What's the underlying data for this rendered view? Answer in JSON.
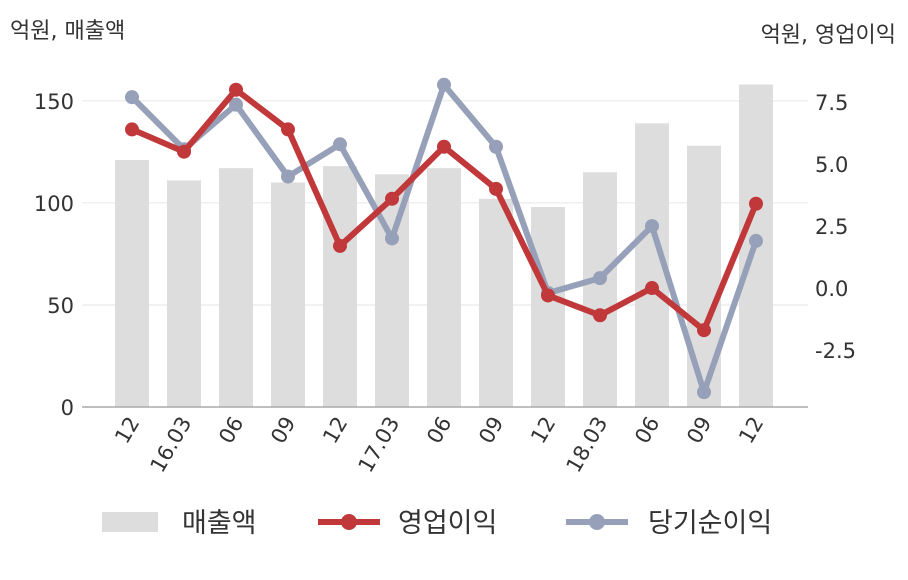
{
  "chart_data": {
    "type": "bar+line",
    "left_axis_unit": "억원, 매출액",
    "right_axis_unit": "억원, 영업이익",
    "categories": [
      "12",
      "16.03",
      "06",
      "09",
      "12",
      "17.03",
      "06",
      "09",
      "12",
      "18.03",
      "06",
      "09",
      "12"
    ],
    "left_axis": {
      "ticks": [
        "0",
        "50",
        "100",
        "150"
      ],
      "ylim": [
        0,
        170
      ]
    },
    "right_axis": {
      "ticks": [
        "-2.5",
        "0.0",
        "2.5",
        "5.0",
        "7.5"
      ],
      "ylim": [
        -4.8,
        9.2
      ]
    },
    "series": [
      {
        "name": "매출액",
        "type": "bar",
        "axis": "left",
        "color": "#dddddd",
        "values": [
          121,
          111,
          117,
          110,
          118,
          114,
          117,
          102,
          98,
          115,
          139,
          128,
          158
        ]
      },
      {
        "name": "영업이익",
        "type": "line",
        "axis": "right",
        "color": "#c0383a",
        "values": [
          6.4,
          5.5,
          8.0,
          6.4,
          1.7,
          3.6,
          5.7,
          4.0,
          -0.3,
          -1.1,
          0.0,
          -1.7,
          3.4
        ]
      },
      {
        "name": "당기순이익",
        "type": "line",
        "axis": "right",
        "color": "#96a0b8",
        "values": [
          7.7,
          5.6,
          7.4,
          4.5,
          5.8,
          2.0,
          8.2,
          5.7,
          -0.2,
          0.4,
          2.5,
          -4.2,
          1.9
        ]
      }
    ],
    "grid": true,
    "legend": "bottom"
  }
}
